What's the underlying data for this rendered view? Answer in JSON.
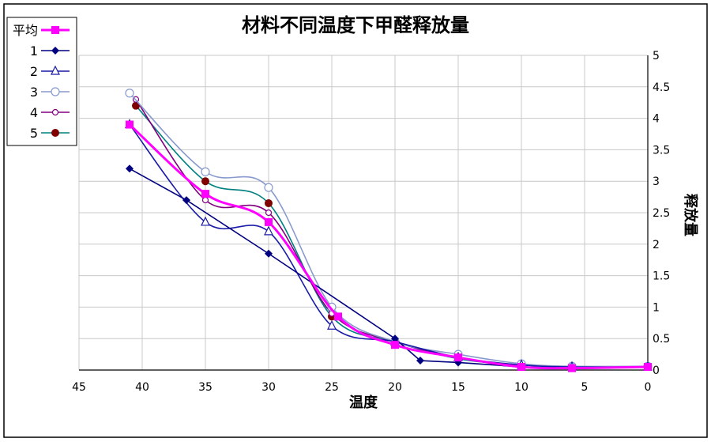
{
  "chart_data": {
    "type": "line",
    "title": "材料不同温度下甲醛释放量",
    "xlabel": "温度",
    "ylabel": "释放量",
    "x_axis_reversed": true,
    "y_axis_side": "right",
    "xlim": [
      0,
      45
    ],
    "ylim": [
      0,
      5
    ],
    "xticks": [
      "0",
      "5",
      "10",
      "15",
      "20",
      "25",
      "30",
      "35",
      "40",
      "45"
    ],
    "yticks": [
      "0",
      "0.5",
      "1",
      "1.5",
      "2",
      "2.5",
      "3",
      "3.5",
      "4",
      "4.5",
      "5"
    ],
    "grid": true,
    "legend_position": "top-left",
    "series": [
      {
        "name": "平均",
        "color": "#ff00ff",
        "marker": "square",
        "smooth": true,
        "points": [
          [
            41,
            3.9
          ],
          [
            35,
            2.8
          ],
          [
            30,
            2.35
          ],
          [
            24.5,
            0.85
          ],
          [
            20,
            0.4
          ],
          [
            15,
            0.2
          ],
          [
            10,
            0.05
          ],
          [
            6,
            0.03
          ],
          [
            0,
            0.05
          ]
        ]
      },
      {
        "name": "1",
        "color": "#000080",
        "marker": "diamond",
        "smooth": false,
        "points": [
          [
            41,
            3.2
          ],
          [
            36.5,
            2.7
          ],
          [
            30,
            1.85
          ],
          [
            20,
            0.5
          ],
          [
            18,
            0.15
          ],
          [
            15,
            0.12
          ],
          [
            10,
            0.05
          ],
          [
            6,
            0.03
          ],
          [
            0,
            0.05
          ]
        ]
      },
      {
        "name": "2",
        "color": "#1a1aa8",
        "marker": "triangle",
        "smooth": true,
        "points": [
          [
            41,
            3.9
          ],
          [
            35,
            2.35
          ],
          [
            30,
            2.2
          ],
          [
            25,
            0.7
          ],
          [
            20,
            0.45
          ],
          [
            15,
            0.2
          ],
          [
            10,
            0.08
          ],
          [
            6,
            0.05
          ],
          [
            0,
            0.05
          ]
        ]
      },
      {
        "name": "3",
        "color": "#8899cc",
        "marker": "circle-open",
        "smooth": true,
        "points": [
          [
            41,
            4.4
          ],
          [
            35,
            3.15
          ],
          [
            30,
            2.9
          ],
          [
            25,
            1.0
          ],
          [
            20,
            0.45
          ],
          [
            15,
            0.25
          ],
          [
            10,
            0.1
          ],
          [
            6,
            0.06
          ],
          [
            0,
            0.06
          ]
        ]
      },
      {
        "name": "4",
        "color": "#800080",
        "marker": "circle-small",
        "smooth": true,
        "points": [
          [
            40.5,
            4.3
          ],
          [
            35,
            2.7
          ],
          [
            30,
            2.5
          ],
          [
            25,
            0.9
          ],
          [
            20,
            0.45
          ],
          [
            15,
            0.2
          ],
          [
            10,
            0.05
          ],
          [
            6,
            0.05
          ],
          [
            0,
            0.05
          ]
        ]
      },
      {
        "name": "5",
        "color": "#008080",
        "marker": "circle-filled",
        "marker_color": "#800000",
        "smooth": true,
        "points": [
          [
            40.5,
            4.2
          ],
          [
            35,
            3.0
          ],
          [
            30,
            2.65
          ],
          [
            25,
            0.85
          ],
          [
            20,
            0.45
          ],
          [
            15,
            0.18
          ],
          [
            10,
            0.08
          ],
          [
            6,
            0.05
          ],
          [
            0,
            0.05
          ]
        ]
      }
    ]
  }
}
